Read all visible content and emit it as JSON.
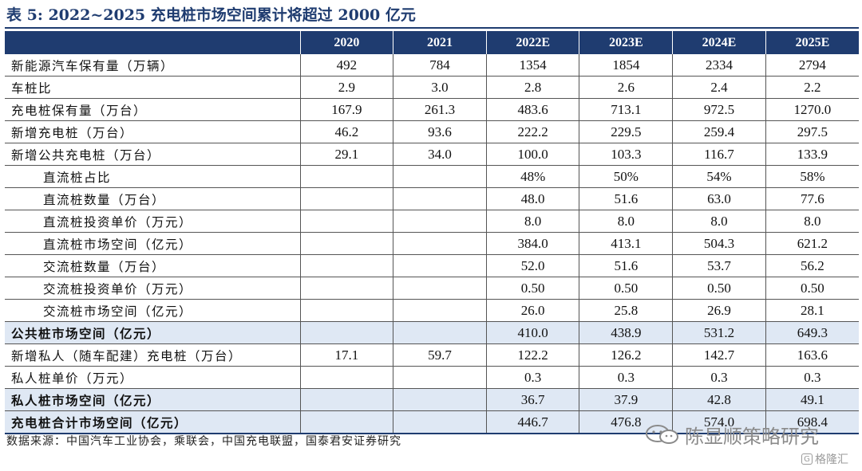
{
  "title": "表 5:  2022~2025 充电桩市场空间累计将超过 2000 亿元",
  "table": {
    "columns": [
      "2020",
      "2021",
      "2022E",
      "2023E",
      "2024E",
      "2025E"
    ],
    "rows": [
      {
        "label": "新能源汽车保有量（万辆）",
        "indent": false,
        "highlight": false,
        "values": [
          "492",
          "784",
          "1354",
          "1854",
          "2334",
          "2794"
        ]
      },
      {
        "label": "车桩比",
        "indent": false,
        "highlight": false,
        "values": [
          "2.9",
          "3.0",
          "2.8",
          "2.6",
          "2.4",
          "2.2"
        ]
      },
      {
        "label": "充电桩保有量（万台）",
        "indent": false,
        "highlight": false,
        "values": [
          "167.9",
          "261.3",
          "483.6",
          "713.1",
          "972.5",
          "1270.0"
        ]
      },
      {
        "label": "新增充电桩（万台）",
        "indent": false,
        "highlight": false,
        "values": [
          "46.2",
          "93.6",
          "222.2",
          "229.5",
          "259.4",
          "297.5"
        ]
      },
      {
        "label": "新增公共充电桩（万台）",
        "indent": false,
        "highlight": false,
        "values": [
          "29.1",
          "34.0",
          "100.0",
          "103.3",
          "116.7",
          "133.9"
        ]
      },
      {
        "label": "直流桩占比",
        "indent": true,
        "highlight": false,
        "values": [
          "",
          "",
          "48%",
          "50%",
          "54%",
          "58%"
        ]
      },
      {
        "label": "直流桩数量（万台）",
        "indent": true,
        "highlight": false,
        "values": [
          "",
          "",
          "48.0",
          "51.6",
          "63.0",
          "77.6"
        ]
      },
      {
        "label": "直流桩投资单价（万元）",
        "indent": true,
        "highlight": false,
        "values": [
          "",
          "",
          "8.0",
          "8.0",
          "8.0",
          "8.0"
        ]
      },
      {
        "label": "直流桩市场空间（亿元）",
        "indent": true,
        "highlight": false,
        "values": [
          "",
          "",
          "384.0",
          "413.1",
          "504.3",
          "621.2"
        ]
      },
      {
        "label": "交流桩数量（万台）",
        "indent": true,
        "highlight": false,
        "values": [
          "",
          "",
          "52.0",
          "51.6",
          "53.7",
          "56.2"
        ]
      },
      {
        "label": "交流桩投资单价（万元）",
        "indent": true,
        "highlight": false,
        "values": [
          "",
          "",
          "0.50",
          "0.50",
          "0.50",
          "0.50"
        ]
      },
      {
        "label": "交流桩市场空间（亿元）",
        "indent": true,
        "highlight": false,
        "values": [
          "",
          "",
          "26.0",
          "25.8",
          "26.9",
          "28.1"
        ]
      },
      {
        "label": "公共桩市场空间（亿元）",
        "indent": false,
        "highlight": true,
        "values": [
          "",
          "",
          "410.0",
          "438.9",
          "531.2",
          "649.3"
        ]
      },
      {
        "label": "新增私人（随车配建）充电桩（万台）",
        "indent": false,
        "highlight": false,
        "values": [
          "17.1",
          "59.7",
          "122.2",
          "126.2",
          "142.7",
          "163.6"
        ]
      },
      {
        "label": "私人桩单价（万元）",
        "indent": false,
        "highlight": false,
        "values": [
          "",
          "",
          "0.3",
          "0.3",
          "0.3",
          "0.3"
        ]
      },
      {
        "label": "私人桩市场空间（亿元）",
        "indent": false,
        "highlight": true,
        "values": [
          "",
          "",
          "36.7",
          "37.9",
          "42.8",
          "49.1"
        ]
      },
      {
        "label": "充电桩合计市场空间（亿元）",
        "indent": false,
        "highlight": true,
        "values": [
          "",
          "",
          "446.7",
          "476.8",
          "574.0",
          "698.4"
        ]
      }
    ]
  },
  "source": "数据来源：中国汽车工业协会，乘联会，中国充电联盟，国泰君安证券研究",
  "watermark": {
    "text": "陈显顺策略研究",
    "icon": "wechat-icon"
  },
  "watermark2": {
    "text": "格隆汇",
    "logo": "G"
  },
  "colors": {
    "header_bg": "#1f3c70",
    "highlight_bg": "#dfe8f4",
    "title": "#1f3c70"
  }
}
